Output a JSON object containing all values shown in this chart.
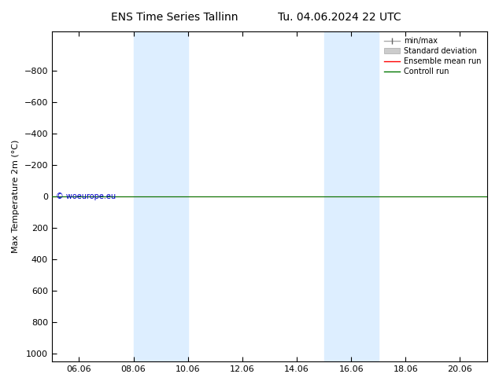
{
  "title": "ENS Time Series Tallinn",
  "title2": "Tu. 04.06.2024 22 UTC",
  "ylabel": "Max Temperature 2m (°C)",
  "ylim_top": -1050,
  "ylim_bottom": 1050,
  "yticks": [
    -800,
    -600,
    -400,
    -200,
    0,
    200,
    400,
    600,
    800,
    1000
  ],
  "xtick_labels": [
    "06.06",
    "08.06",
    "10.06",
    "12.06",
    "14.06",
    "16.06",
    "18.06",
    "20.06"
  ],
  "xtick_positions": [
    1.0,
    3.0,
    5.0,
    7.0,
    9.0,
    11.0,
    13.0,
    15.0
  ],
  "xlim": [
    0.0,
    16.0
  ],
  "shade_bands": [
    {
      "x_start": 3.0,
      "x_end": 5.0
    },
    {
      "x_start": 10.0,
      "x_end": 12.0
    }
  ],
  "shade_color": "#ddeeff",
  "flat_line_y": 0,
  "line_red_color": "#ff0000",
  "line_green_color": "#007700",
  "line_gray_color": "#888888",
  "watermark": "© woeurope.eu",
  "watermark_color": "#0000cc",
  "legend_labels": [
    "min/max",
    "Standard deviation",
    "Ensemble mean run",
    "Controll run"
  ],
  "background_color": "#ffffff"
}
